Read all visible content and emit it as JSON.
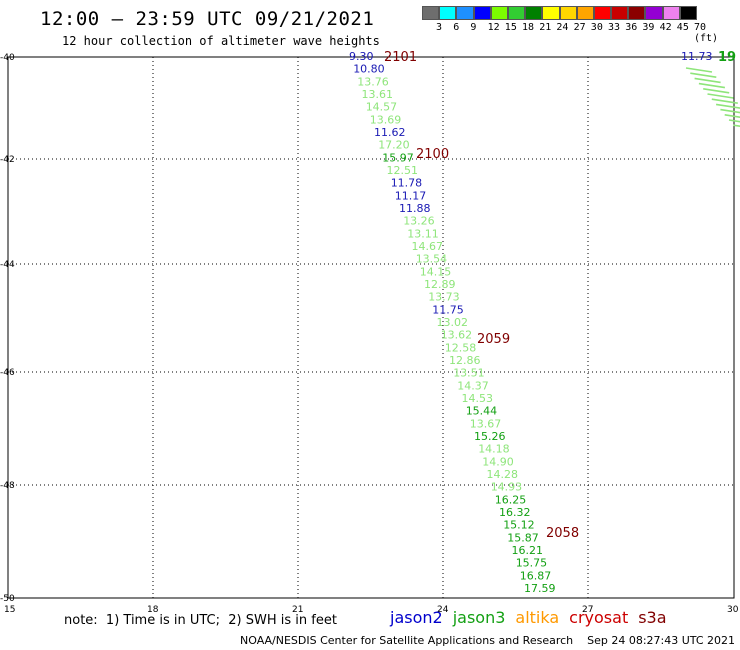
{
  "header": {
    "title": "12:00 – 23:59 UTC 09/21/2021",
    "subtitle": "12 hour collection of altimeter wave heights"
  },
  "color_scale": {
    "unit_label": "(ft)",
    "labels": [
      "3",
      "6",
      "9",
      "12",
      "15",
      "18",
      "21",
      "24",
      "27",
      "30",
      "33",
      "36",
      "39",
      "42",
      "45",
      "70"
    ],
    "colors": [
      "#6e6e6e",
      "#00ffff",
      "#1e90ff",
      "#0000ff",
      "#7cfc00",
      "#32cd32",
      "#008000",
      "#ffff00",
      "#ffd700",
      "#ffa500",
      "#ff0000",
      "#c80000",
      "#8b0000",
      "#9400d3",
      "#ee82ee",
      "#000000"
    ]
  },
  "map": {
    "lon_labels": [
      "15",
      "18",
      "21",
      "24",
      "27",
      "30"
    ],
    "lat_labels": [
      "-40",
      "-42",
      "-44",
      "-46",
      "-48",
      "-50"
    ],
    "track_colors": {
      "jason2": "#1a1ab4",
      "jason3": "#8ee57a",
      "jason3_dark": "#13a013",
      "time": "#800000"
    },
    "points": [
      {
        "v": "9.30",
        "c": "jason2"
      },
      {
        "v": "10.80",
        "c": "jason2"
      },
      {
        "v": "13.76",
        "c": "jason3"
      },
      {
        "v": "13.61",
        "c": "jason3"
      },
      {
        "v": "14.57",
        "c": "jason3"
      },
      {
        "v": "13.69",
        "c": "jason3"
      },
      {
        "v": "11.62",
        "c": "jason2"
      },
      {
        "v": "17.20",
        "c": "jason3"
      },
      {
        "v": "15.97",
        "c": "jason3_dark"
      },
      {
        "v": "12.51",
        "c": "jason3"
      },
      {
        "v": "11.78",
        "c": "jason2"
      },
      {
        "v": "11.17",
        "c": "jason2"
      },
      {
        "v": "11.88",
        "c": "jason2"
      },
      {
        "v": "13.26",
        "c": "jason3"
      },
      {
        "v": "13.11",
        "c": "jason3"
      },
      {
        "v": "14.67",
        "c": "jason3"
      },
      {
        "v": "13.54",
        "c": "jason3"
      },
      {
        "v": "14.15",
        "c": "jason3"
      },
      {
        "v": "12.89",
        "c": "jason3"
      },
      {
        "v": "13.73",
        "c": "jason3"
      },
      {
        "v": "11.75",
        "c": "jason2"
      },
      {
        "v": "13.02",
        "c": "jason3"
      },
      {
        "v": "13.62",
        "c": "jason3"
      },
      {
        "v": "12.58",
        "c": "jason3"
      },
      {
        "v": "12.86",
        "c": "jason3"
      },
      {
        "v": "13.51",
        "c": "jason3"
      },
      {
        "v": "14.37",
        "c": "jason3"
      },
      {
        "v": "14.53",
        "c": "jason3"
      },
      {
        "v": "15.44",
        "c": "jason3_dark"
      },
      {
        "v": "13.67",
        "c": "jason3"
      },
      {
        "v": "15.26",
        "c": "jason3_dark"
      },
      {
        "v": "14.18",
        "c": "jason3"
      },
      {
        "v": "14.90",
        "c": "jason3"
      },
      {
        "v": "14.28",
        "c": "jason3"
      },
      {
        "v": "14.93",
        "c": "jason3"
      },
      {
        "v": "16.25",
        "c": "jason3_dark"
      },
      {
        "v": "16.32",
        "c": "jason3_dark"
      },
      {
        "v": "15.12",
        "c": "jason3_dark"
      },
      {
        "v": "15.87",
        "c": "jason3_dark"
      },
      {
        "v": "16.21",
        "c": "jason3_dark"
      },
      {
        "v": "15.75",
        "c": "jason3_dark"
      },
      {
        "v": "16.87",
        "c": "jason3_dark"
      },
      {
        "v": "17.59",
        "c": "jason3_dark"
      }
    ],
    "times": [
      "2101",
      "2100",
      "2059",
      "2058"
    ],
    "corner_value": "11.73",
    "corner_time": "19"
  },
  "note": "note:  1) Time is in UTC;  2) SWH is in feet",
  "legend": [
    {
      "name": "jason2",
      "color": "#0000cc"
    },
    {
      "name": "jason3",
      "color": "#14a014"
    },
    {
      "name": "altika",
      "color": "#ff9900"
    },
    {
      "name": "cryosat",
      "color": "#cc0000"
    },
    {
      "name": "s3a",
      "color": "#800000"
    }
  ],
  "footer": "NOAA/NESDIS Center for Satellite Applications and Research    Sep 24 08:27:43 UTC 2021"
}
